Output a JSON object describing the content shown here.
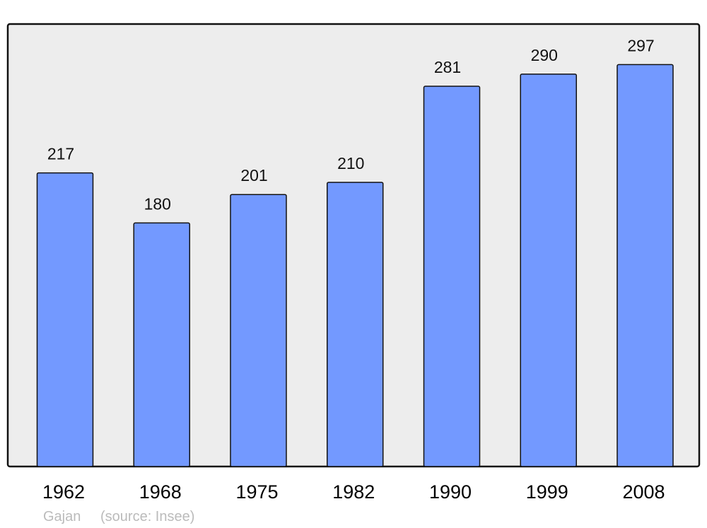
{
  "chart_data": {
    "type": "bar",
    "categories": [
      "1962",
      "1968",
      "1975",
      "1982",
      "1990",
      "1999",
      "2008"
    ],
    "values": [
      217,
      180,
      201,
      210,
      281,
      290,
      297
    ],
    "title": "",
    "xlabel": "",
    "ylabel": "",
    "ylim": [
      0,
      327
    ],
    "grid": false,
    "data_labels": true,
    "colors": {
      "bar": "#7399ff",
      "plot_background": "#ededed",
      "border": "#111111",
      "footer": "#bbbbbb"
    }
  },
  "footer": {
    "place": "Gajan",
    "source": "(source: Insee)"
  }
}
